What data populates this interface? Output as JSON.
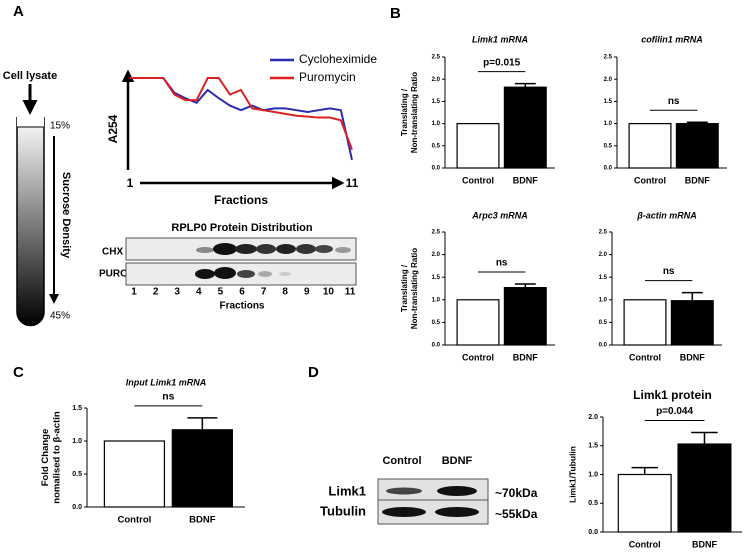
{
  "chart_data": [
    {
      "type": "line",
      "xlabel": "Fractions",
      "ylabel": "A254",
      "x": [
        1,
        1.5,
        2,
        2.5,
        3,
        3.5,
        4,
        4.5,
        5,
        5.5,
        6,
        6.5,
        7,
        7.5,
        8,
        8.5,
        9,
        9.5,
        10,
        10.5,
        11
      ],
      "xlim": [
        1,
        11
      ],
      "xticks": [
        1,
        11
      ],
      "ylim": [
        0,
        100
      ],
      "series": [
        {
          "name": "Cycloheximide",
          "color": "#2b2bb0",
          "values": [
            100,
            100,
            100,
            100,
            84,
            78,
            73,
            87,
            78,
            70,
            65,
            70,
            65,
            67,
            67,
            65,
            63,
            65,
            67,
            65,
            11
          ]
        },
        {
          "name": "Puromycin",
          "color": "#e02020",
          "values": [
            100,
            100,
            100,
            100,
            82,
            76,
            76,
            100,
            100,
            82,
            87,
            67,
            65,
            63,
            61,
            59,
            58,
            57,
            57,
            54,
            22
          ]
        }
      ]
    },
    {
      "type": "bar",
      "title": "Limk1 mRNA",
      "ylabel": [
        "Translating /",
        "Non-translating Ratio"
      ],
      "categories": [
        "Control",
        "BDNF"
      ],
      "values": [
        1.0,
        1.82
      ],
      "errors": [
        null,
        0.08
      ],
      "annotation": "p=0.015",
      "ylim": [
        0,
        2.5
      ],
      "yticks": [
        {
          "value": 0,
          "label": "0.0"
        },
        {
          "value": 0.5,
          "label": "0.5"
        },
        {
          "value": 1,
          "label": "1.0"
        },
        {
          "value": 1.5,
          "label": "1.5"
        },
        {
          "value": 2,
          "label": "2.0"
        },
        {
          "value": 2.5,
          "label": "2.5"
        }
      ],
      "colors": [
        "#ffffff",
        "#000000"
      ]
    },
    {
      "type": "bar",
      "title": "cofilin1 mRNA",
      "categories": [
        "Control",
        "BDNF"
      ],
      "values": [
        1.0,
        1.0
      ],
      "errors": [
        null,
        0.03
      ],
      "annotation": "ns",
      "ylim": [
        0,
        2.5
      ],
      "yticks": [
        {
          "value": 0,
          "label": "0.0"
        },
        {
          "value": 0.5,
          "label": "0.5"
        },
        {
          "value": 1,
          "label": "1.0"
        },
        {
          "value": 1.5,
          "label": "1.5"
        },
        {
          "value": 2,
          "label": "2.0"
        },
        {
          "value": 2.5,
          "label": "2.5"
        }
      ],
      "colors": [
        "#ffffff",
        "#000000"
      ]
    },
    {
      "type": "bar",
      "title": "Arpc3 mRNA",
      "ylabel": [
        "Translating /",
        "Non-translating Ratio"
      ],
      "categories": [
        "Control",
        "BDNF"
      ],
      "values": [
        1.0,
        1.27
      ],
      "errors": [
        null,
        0.08
      ],
      "annotation": "ns",
      "ylim": [
        0,
        2.5
      ],
      "yticks": [
        {
          "value": 0,
          "label": "0.0"
        },
        {
          "value": 0.5,
          "label": "0.5"
        },
        {
          "value": 1,
          "label": "1.0"
        },
        {
          "value": 1.5,
          "label": "1.5"
        },
        {
          "value": 2,
          "label": "2.0"
        },
        {
          "value": 2.5,
          "label": "2.5"
        }
      ],
      "colors": [
        "#ffffff",
        "#000000"
      ]
    },
    {
      "type": "bar",
      "title": "β-actin mRNA",
      "categories": [
        "Control",
        "BDNF"
      ],
      "values": [
        1.0,
        0.98
      ],
      "errors": [
        null,
        0.18
      ],
      "annotation": "ns",
      "ylim": [
        0,
        2.5
      ],
      "yticks": [
        {
          "value": 0,
          "label": "0.0"
        },
        {
          "value": 0.5,
          "label": "0.5"
        },
        {
          "value": 1,
          "label": "1.0"
        },
        {
          "value": 1.5,
          "label": "1.5"
        },
        {
          "value": 2,
          "label": "2.0"
        },
        {
          "value": 2.5,
          "label": "2.5"
        }
      ],
      "colors": [
        "#ffffff",
        "#000000"
      ]
    },
    {
      "type": "bar",
      "title": "Input Limk1 mRNA",
      "ylabel": [
        "Fold Change",
        "nomalised to β-actin"
      ],
      "categories": [
        "Control",
        "BDNF"
      ],
      "values": [
        1.0,
        1.17
      ],
      "errors": [
        null,
        0.18
      ],
      "annotation": "ns",
      "ylim": [
        0,
        1.5
      ],
      "yticks": [
        {
          "value": 0,
          "label": "0.0"
        },
        {
          "value": 0.5,
          "label": "0.5"
        },
        {
          "value": 1,
          "label": "1.0"
        },
        {
          "value": 1.5,
          "label": "1.5"
        }
      ],
      "colors": [
        "#ffffff",
        "#000000"
      ]
    },
    {
      "type": "bar",
      "title": "Limk1 protein",
      "ylabel": [
        "Limk1/Tubulin"
      ],
      "categories": [
        "Control",
        "BDNF"
      ],
      "values": [
        1.0,
        1.53
      ],
      "errors": [
        0.12,
        0.2
      ],
      "annotation": "p=0.044",
      "ylim": [
        0,
        2
      ],
      "yticks": [
        {
          "value": 0,
          "label": "0.0"
        },
        {
          "value": 0.5,
          "label": "0.5"
        },
        {
          "value": 1,
          "label": "1.0"
        },
        {
          "value": 1.5,
          "label": "1.5"
        },
        {
          "value": 2,
          "label": "2.0"
        }
      ],
      "colors": [
        "#ffffff",
        "#000000"
      ]
    }
  ],
  "labels": {
    "panels": [
      "A",
      "B",
      "C",
      "D"
    ],
    "cell_lysate": "Cell lysate",
    "top_pct": "15%",
    "bottom_pct": "45%",
    "sucrose": "Sucrose Density",
    "blot_title": "RPLP0 Protein Distribution",
    "blot_rows": [
      "CHX",
      "PURO"
    ],
    "blot_fractions": [
      "1",
      "2",
      "3",
      "4",
      "5",
      "6",
      "7",
      "8",
      "9",
      "10",
      "11"
    ],
    "blot_xlabel": "Fractions",
    "wb_columns": [
      "Control",
      "BDNF"
    ],
    "wb_rows": [
      "Limk1",
      "Tubulin"
    ],
    "wb_sizes": [
      "~70kDa",
      "~55kDa"
    ]
  }
}
